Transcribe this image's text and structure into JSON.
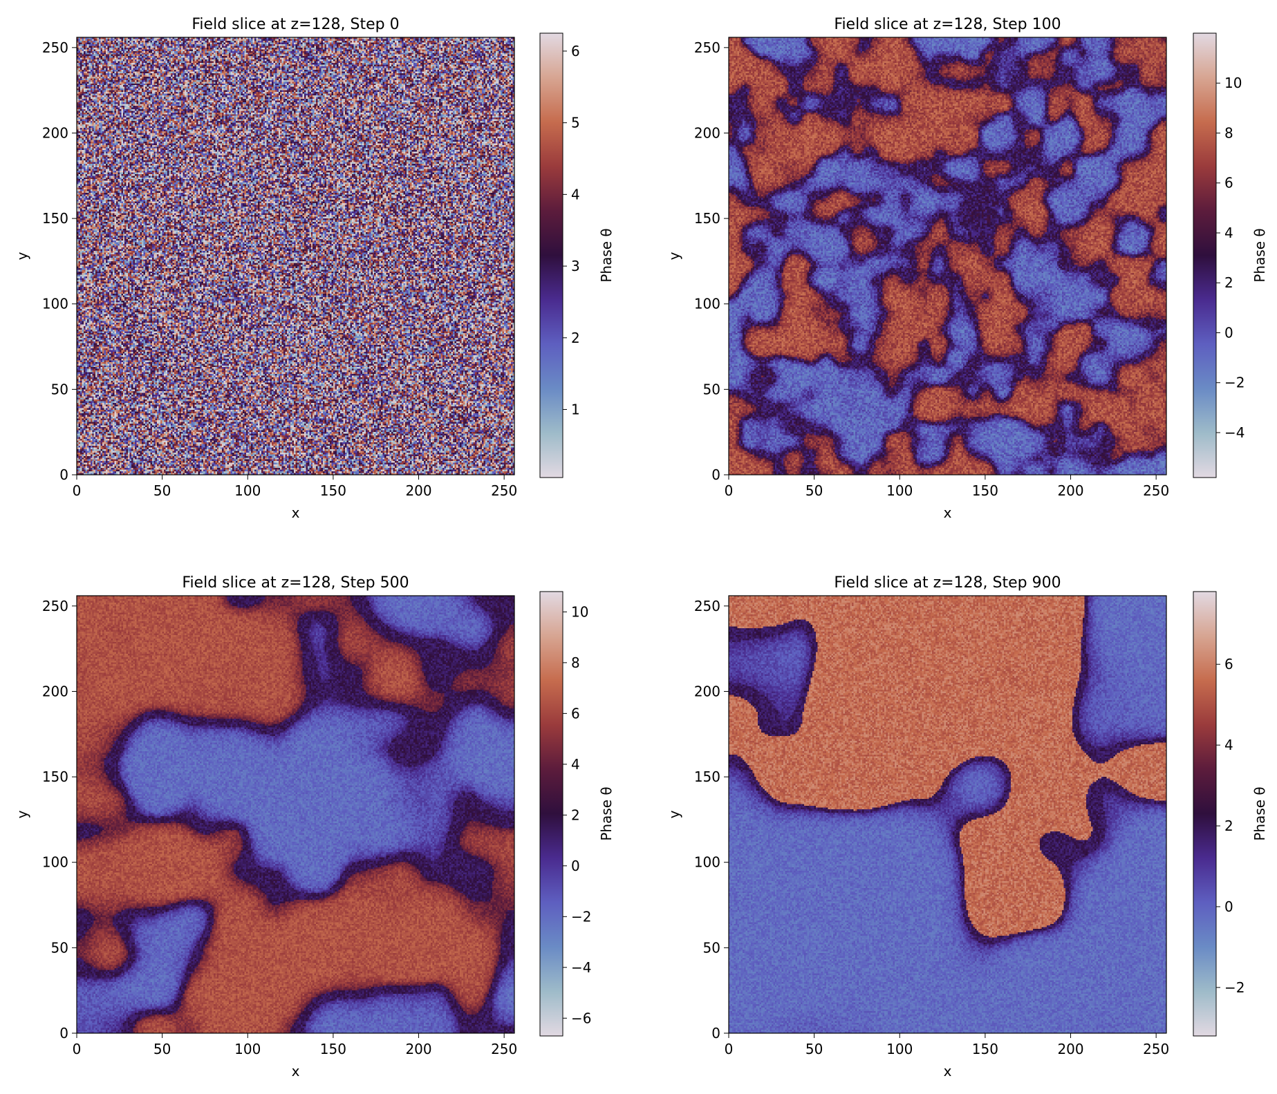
{
  "colormap": {
    "name": "twilight_shifted",
    "stops": [
      "#e2d9e2",
      "#9ebbc9",
      "#6a8bc5",
      "#5e5fc0",
      "#4a2b8f",
      "#2f0f3d",
      "#5c1c3c",
      "#9a3b3c",
      "#c66c4e",
      "#d7a592",
      "#e2d9e2"
    ]
  },
  "chart_data": [
    {
      "type": "heatmap",
      "title": "Field slice at z=128, Step 0",
      "xlabel": "x",
      "ylabel": "y",
      "xlim": [
        0,
        256
      ],
      "ylim": [
        0,
        256
      ],
      "xticks": [
        0,
        50,
        100,
        150,
        200,
        250
      ],
      "yticks": [
        0,
        50,
        100,
        150,
        200,
        250
      ],
      "colorbar": {
        "label": "Phase θ",
        "range": [
          0.05,
          6.25
        ],
        "ticks": [
          1,
          2,
          3,
          4,
          5,
          6
        ]
      },
      "pattern": "uniform random noise"
    },
    {
      "type": "heatmap",
      "title": "Field slice at z=128, Step 100",
      "xlabel": "x",
      "ylabel": "y",
      "xlim": [
        0,
        256
      ],
      "ylim": [
        0,
        256
      ],
      "xticks": [
        0,
        50,
        100,
        150,
        200,
        250
      ],
      "yticks": [
        0,
        50,
        100,
        150,
        200,
        250
      ],
      "colorbar": {
        "label": "Phase θ",
        "range": [
          -5.8,
          12.0
        ],
        "ticks": [
          -4,
          -2,
          0,
          2,
          4,
          6,
          8,
          10
        ]
      },
      "pattern": "fine interconnected labyrinth domains"
    },
    {
      "type": "heatmap",
      "title": "Field slice at z=128, Step 500",
      "xlabel": "x",
      "ylabel": "y",
      "xlim": [
        0,
        256
      ],
      "ylim": [
        0,
        256
      ],
      "xticks": [
        0,
        50,
        100,
        150,
        200,
        250
      ],
      "yticks": [
        0,
        50,
        100,
        150,
        200,
        250
      ],
      "colorbar": {
        "label": "Phase θ",
        "range": [
          -6.7,
          10.8
        ],
        "ticks": [
          -6,
          -4,
          -2,
          0,
          2,
          4,
          6,
          8,
          10
        ]
      },
      "pattern": "coarsened domains"
    },
    {
      "type": "heatmap",
      "title": "Field slice at z=128, Step 900",
      "xlabel": "x",
      "ylabel": "y",
      "xlim": [
        0,
        256
      ],
      "ylim": [
        0,
        256
      ],
      "xticks": [
        0,
        50,
        100,
        150,
        200,
        250
      ],
      "yticks": [
        0,
        50,
        100,
        150,
        200,
        250
      ],
      "colorbar": {
        "label": "Phase θ",
        "range": [
          -3.2,
          7.8
        ],
        "ticks": [
          -2,
          0,
          2,
          4,
          6
        ]
      },
      "pattern": "single large domain in uniform background"
    }
  ]
}
